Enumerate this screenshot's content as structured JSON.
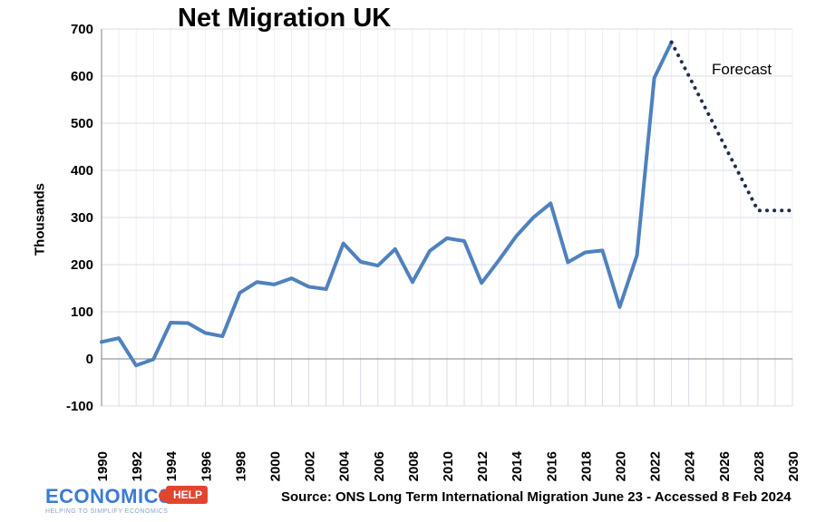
{
  "chart_data": {
    "type": "line",
    "title": "Net Migration UK",
    "ylabel": "Thousands",
    "xlabel": "",
    "ylim": [
      -100,
      700
    ],
    "yticks": [
      -100,
      0,
      100,
      200,
      300,
      400,
      500,
      600,
      700
    ],
    "xticks": [
      1990,
      1992,
      1994,
      1996,
      1998,
      2000,
      2002,
      2004,
      2006,
      2008,
      2010,
      2012,
      2014,
      2016,
      2018,
      2020,
      2022,
      2024,
      2026,
      2028,
      2030
    ],
    "xlim": [
      1990,
      2030
    ],
    "series": [
      {
        "name": "Net migration",
        "style": "solid",
        "color": "#4f81bd",
        "x": [
          1990,
          1991,
          1992,
          1993,
          1994,
          1995,
          1996,
          1997,
          1998,
          1999,
          2000,
          2001,
          2002,
          2003,
          2004,
          2005,
          2006,
          2007,
          2008,
          2009,
          2010,
          2011,
          2012,
          2013,
          2014,
          2015,
          2016,
          2017,
          2018,
          2019,
          2020,
          2021,
          2022,
          2023
        ],
        "values": [
          36,
          44,
          -14,
          -1,
          77,
          76,
          55,
          48,
          140,
          163,
          158,
          171,
          153,
          148,
          245,
          206,
          198,
          233,
          163,
          229,
          256,
          250,
          161,
          209,
          260,
          300,
          330,
          205,
          226,
          230,
          110,
          220,
          596,
          672
        ]
      },
      {
        "name": "Forecast",
        "style": "dotted",
        "color": "#1f2d4d",
        "x": [
          2023,
          2028,
          2030
        ],
        "values": [
          672,
          315,
          315
        ]
      }
    ],
    "annotations": [
      "Forecast"
    ]
  },
  "source": "Source: ONS Long Term International Migration June 23 - Accessed 8 Feb 2024",
  "logo": {
    "main": "ECONOMICS",
    "help": "HELP",
    "tagline": "HELPING TO SIMPLIFY ECONOMICS"
  }
}
